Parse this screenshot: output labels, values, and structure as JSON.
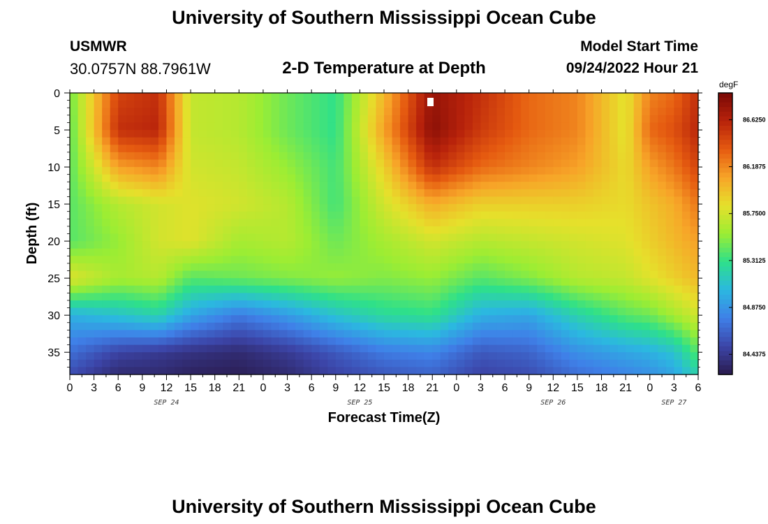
{
  "header": {
    "title": "University of Southern Mississippi Ocean Cube",
    "station_name": "USMWR",
    "station_coords": "30.0757N  88.7961W",
    "start_label": "Model Start Time",
    "start_value": "09/24/2022 Hour 21"
  },
  "footer": {
    "title": "University of Southern Mississippi Ocean Cube"
  },
  "chart_data": {
    "type": "heatmap",
    "title": "2-D Temperature at Depth",
    "xlabel": "Forecast Time(Z)",
    "ylabel": "Depth (ft)",
    "x_range_hours": [
      0,
      78
    ],
    "y_range_ft": [
      0,
      38
    ],
    "y_inverted": true,
    "x_ticks": [
      "0",
      "3",
      "6",
      "9",
      "12",
      "15",
      "18",
      "21",
      "0",
      "3",
      "6",
      "9",
      "12",
      "15",
      "18",
      "21",
      "0",
      "3",
      "6",
      "9",
      "12",
      "15",
      "18",
      "21",
      "0",
      "3",
      "6"
    ],
    "date_labels": [
      {
        "label": "SEP 24",
        "hour": 12
      },
      {
        "label": "SEP 25",
        "hour": 36
      },
      {
        "label": "SEP 26",
        "hour": 60
      },
      {
        "label": "SEP 27",
        "hour": 75
      }
    ],
    "y_ticks": [
      0,
      5,
      10,
      15,
      20,
      25,
      30,
      35
    ],
    "colorbar": {
      "unit": "degF",
      "min": 84.25,
      "max": 86.875,
      "labels": [
        "86.6250",
        "86.1875",
        "85.7500",
        "85.3125",
        "84.8750",
        "84.4375"
      ],
      "label_values": [
        86.625,
        86.1875,
        85.75,
        85.3125,
        84.875,
        84.4375
      ],
      "colors": [
        "#2a1b4e",
        "#3c45a8",
        "#3f80e8",
        "#2bb8e0",
        "#2ee08a",
        "#9ced33",
        "#e6e02b",
        "#f7a428",
        "#e55a10",
        "#b7220b",
        "#7a0906"
      ]
    },
    "temperature_field": {
      "depths_ft": [
        0,
        5,
        10,
        15,
        20,
        25,
        30,
        35,
        38
      ],
      "hours": [
        0,
        6,
        11,
        15,
        21,
        27,
        33,
        39,
        45,
        51,
        57,
        63,
        69,
        72,
        75,
        78
      ],
      "values_degF": [
        [
          85.45,
          86.45,
          86.55,
          85.7,
          85.65,
          85.45,
          85.3,
          86.0,
          86.75,
          86.55,
          86.3,
          86.2,
          85.8,
          86.2,
          86.3,
          86.55
        ],
        [
          85.4,
          86.55,
          86.6,
          85.7,
          85.65,
          85.45,
          85.3,
          86.1,
          86.8,
          86.5,
          86.3,
          86.2,
          85.8,
          86.3,
          86.4,
          86.6
        ],
        [
          85.4,
          86.1,
          86.2,
          85.75,
          85.7,
          85.55,
          85.35,
          85.9,
          86.55,
          86.3,
          86.2,
          86.1,
          85.85,
          86.1,
          86.25,
          86.45
        ],
        [
          85.4,
          85.65,
          85.75,
          85.8,
          85.75,
          85.65,
          85.35,
          85.75,
          86.05,
          85.9,
          85.9,
          85.9,
          85.85,
          85.95,
          86.05,
          86.25
        ],
        [
          85.4,
          85.55,
          85.75,
          85.8,
          85.6,
          85.65,
          85.45,
          85.6,
          85.75,
          85.65,
          85.7,
          85.75,
          85.8,
          85.9,
          86.0,
          86.1
        ],
        [
          85.8,
          85.6,
          85.65,
          85.4,
          85.45,
          85.5,
          85.55,
          85.5,
          85.55,
          85.4,
          85.5,
          85.65,
          85.7,
          85.8,
          85.9,
          86.0
        ],
        [
          85.0,
          85.1,
          85.2,
          84.95,
          84.75,
          84.9,
          85.1,
          85.25,
          85.3,
          85.0,
          84.95,
          85.2,
          85.4,
          85.45,
          85.6,
          85.75
        ],
        [
          84.7,
          84.5,
          84.45,
          84.4,
          84.35,
          84.45,
          84.6,
          84.75,
          84.8,
          84.6,
          84.65,
          84.85,
          84.95,
          85.0,
          85.1,
          85.4
        ],
        [
          84.55,
          84.35,
          84.35,
          84.3,
          84.28,
          84.35,
          84.5,
          84.6,
          84.65,
          84.5,
          84.55,
          84.7,
          84.8,
          84.85,
          84.95,
          85.2
        ]
      ]
    },
    "grid": false,
    "legend": "colorbar-right"
  }
}
